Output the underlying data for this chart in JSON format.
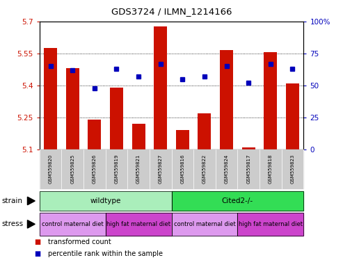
{
  "title": "GDS3724 / ILMN_1214166",
  "samples": [
    "GSM559820",
    "GSM559825",
    "GSM559826",
    "GSM559819",
    "GSM559821",
    "GSM559827",
    "GSM559816",
    "GSM559822",
    "GSM559824",
    "GSM559817",
    "GSM559818",
    "GSM559823"
  ],
  "red_values": [
    5.575,
    5.48,
    5.24,
    5.39,
    5.22,
    5.675,
    5.19,
    5.27,
    5.565,
    5.11,
    5.555,
    5.41
  ],
  "blue_values": [
    65,
    62,
    48,
    63,
    57,
    67,
    55,
    57,
    65,
    52,
    67,
    63
  ],
  "ylim_left": [
    5.1,
    5.7
  ],
  "ylim_right": [
    0,
    100
  ],
  "yticks_left": [
    5.1,
    5.25,
    5.4,
    5.55,
    5.7
  ],
  "yticks_right": [
    0,
    25,
    50,
    75,
    100
  ],
  "bar_color": "#cc1100",
  "dot_color": "#0000bb",
  "bar_base": 5.1,
  "strain_groups": [
    {
      "label": "wildtype",
      "start": 0,
      "end": 6,
      "color": "#aaeebb"
    },
    {
      "label": "Cited2-/-",
      "start": 6,
      "end": 12,
      "color": "#33dd55"
    }
  ],
  "stress_groups": [
    {
      "label": "control maternal diet",
      "start": 0,
      "end": 3,
      "color": "#dd99ee"
    },
    {
      "label": "high fat maternal diet",
      "start": 3,
      "end": 6,
      "color": "#cc44cc"
    },
    {
      "label": "control maternal diet",
      "start": 6,
      "end": 9,
      "color": "#dd99ee"
    },
    {
      "label": "high fat maternal diet",
      "start": 9,
      "end": 12,
      "color": "#cc44cc"
    }
  ],
  "background_color": "#ffffff",
  "tick_label_color_left": "#cc1100",
  "tick_label_color_right": "#0000bb",
  "xlabel_bg_color": "#cccccc",
  "border_color": "#000000"
}
